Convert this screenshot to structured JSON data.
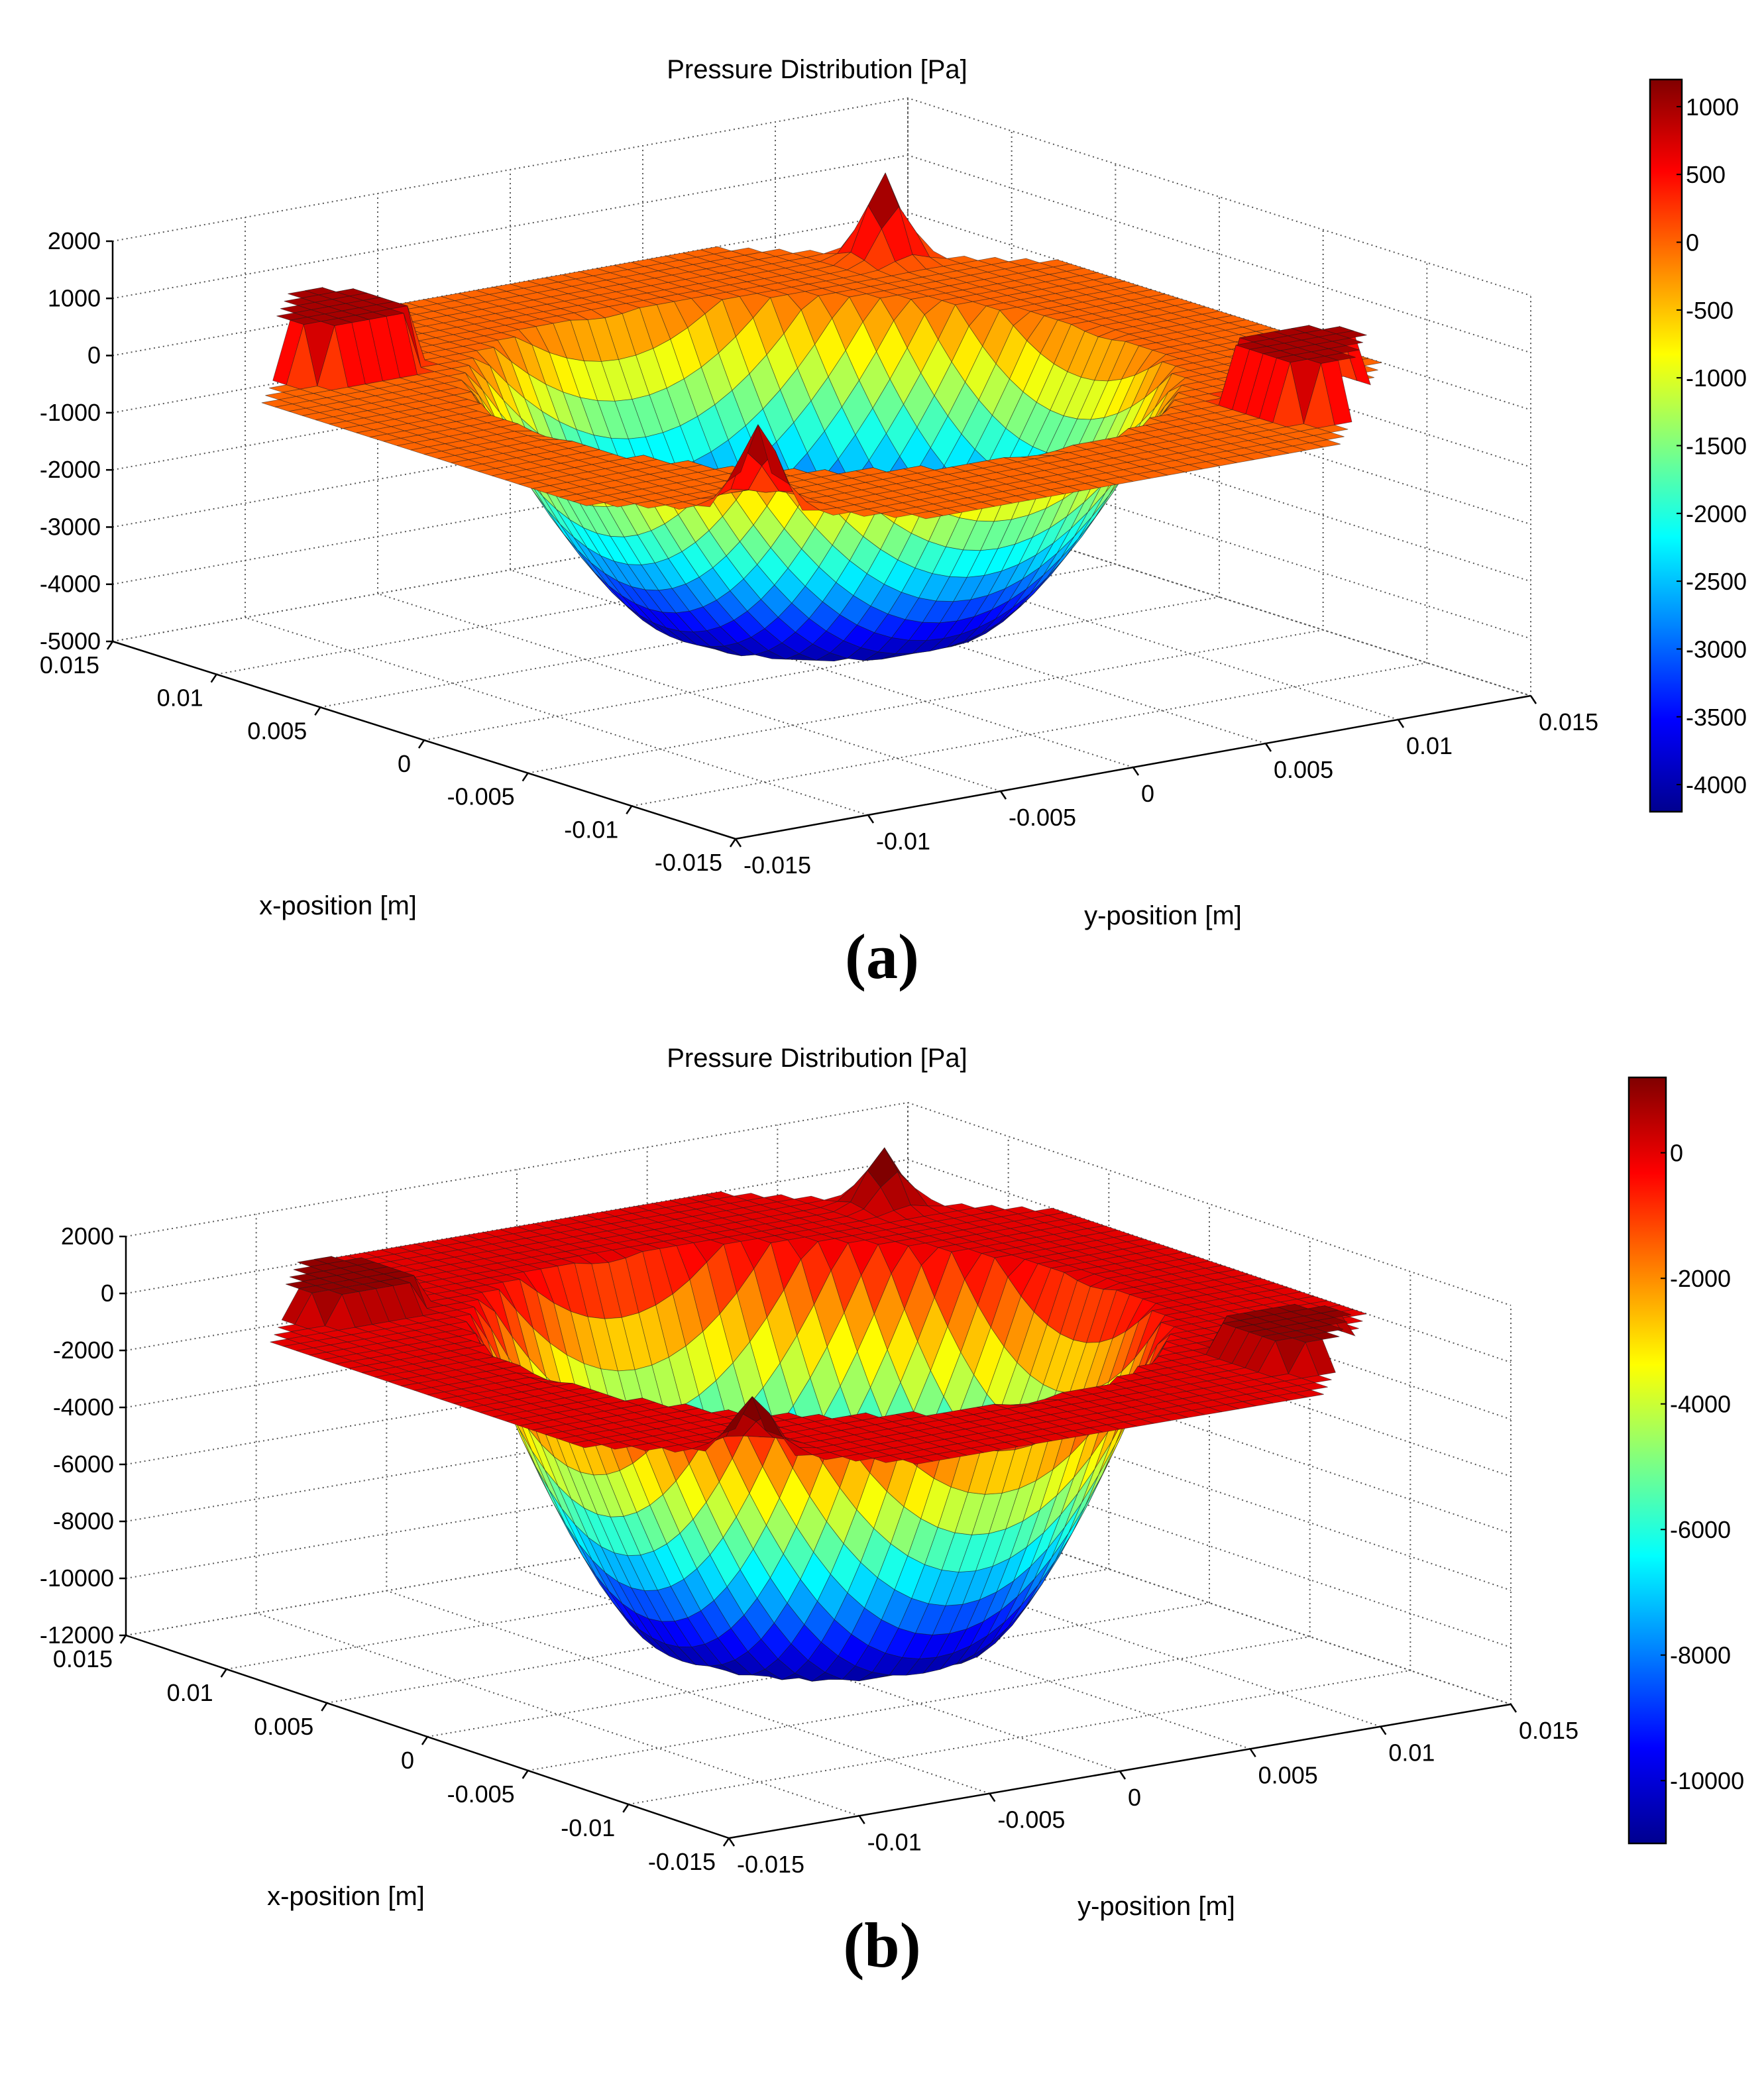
{
  "colormap": [
    "#00008f",
    "#0000ff",
    "#0080ff",
    "#00ffff",
    "#80ff80",
    "#ffff00",
    "#ff8000",
    "#ff0000",
    "#800000"
  ],
  "chart_data": [
    {
      "type": "surface",
      "panel_label": "(a)",
      "title": "Pressure Distribution [Pa]",
      "xlabel": "x-position [m]",
      "ylabel": "y-position [m]",
      "x_ticks": [
        "0.015",
        "0.01",
        "0.005",
        "0",
        "-0.005",
        "-0.01",
        "-0.015"
      ],
      "y_ticks": [
        "-0.015",
        "-0.01",
        "-0.005",
        "0",
        "0.005",
        "0.01",
        "0.015"
      ],
      "z_ticks": [
        "2000",
        "1000",
        "0",
        "-1000",
        "-2000",
        "-3000",
        "-4000",
        "-5000"
      ],
      "zlim": [
        -5000,
        2000
      ],
      "xlim": [
        -0.015,
        0.015
      ],
      "ylim": [
        -0.015,
        0.015
      ],
      "colorbar_ticks": [
        "1000",
        "500",
        "0",
        "-500",
        "-1000",
        "-1500",
        "-2000",
        "-2500",
        "-3000",
        "-3500",
        "-4000"
      ],
      "colorbar_range": [
        -4200,
        1200
      ],
      "surface": {
        "flat_level": 0,
        "bowl_bottom": -4200,
        "bottom_plateau_radius": 0.0048,
        "bowl_radius": 0.0105,
        "inlet_peak": 1000,
        "corner_spike": 1500
      },
      "grid": true
    },
    {
      "type": "surface",
      "panel_label": "(b)",
      "title": "Pressure Distribution [Pa]",
      "xlabel": "x-position [m]",
      "ylabel": "y-position [m]",
      "x_ticks": [
        "0.015",
        "0.01",
        "0.005",
        "0",
        "-0.005",
        "-0.01",
        "-0.015"
      ],
      "y_ticks": [
        "-0.015",
        "-0.01",
        "-0.005",
        "0",
        "0.005",
        "0.01",
        "0.015"
      ],
      "z_ticks": [
        "2000",
        "0",
        "-2000",
        "-4000",
        "-6000",
        "-8000",
        "-10000",
        "-12000"
      ],
      "zlim": [
        -12000,
        2000
      ],
      "xlim": [
        -0.015,
        0.015
      ],
      "ylim": [
        -0.015,
        0.015
      ],
      "colorbar_ticks": [
        "0",
        "-2000",
        "-4000",
        "-6000",
        "-8000",
        "-10000"
      ],
      "colorbar_range": [
        -11000,
        1200
      ],
      "surface": {
        "flat_level": 0,
        "bowl_bottom": -11000,
        "bottom_plateau_radius": 0.005,
        "bowl_radius": 0.0105,
        "inlet_peak": 1000,
        "corner_spike": 2000
      },
      "grid": true
    }
  ]
}
